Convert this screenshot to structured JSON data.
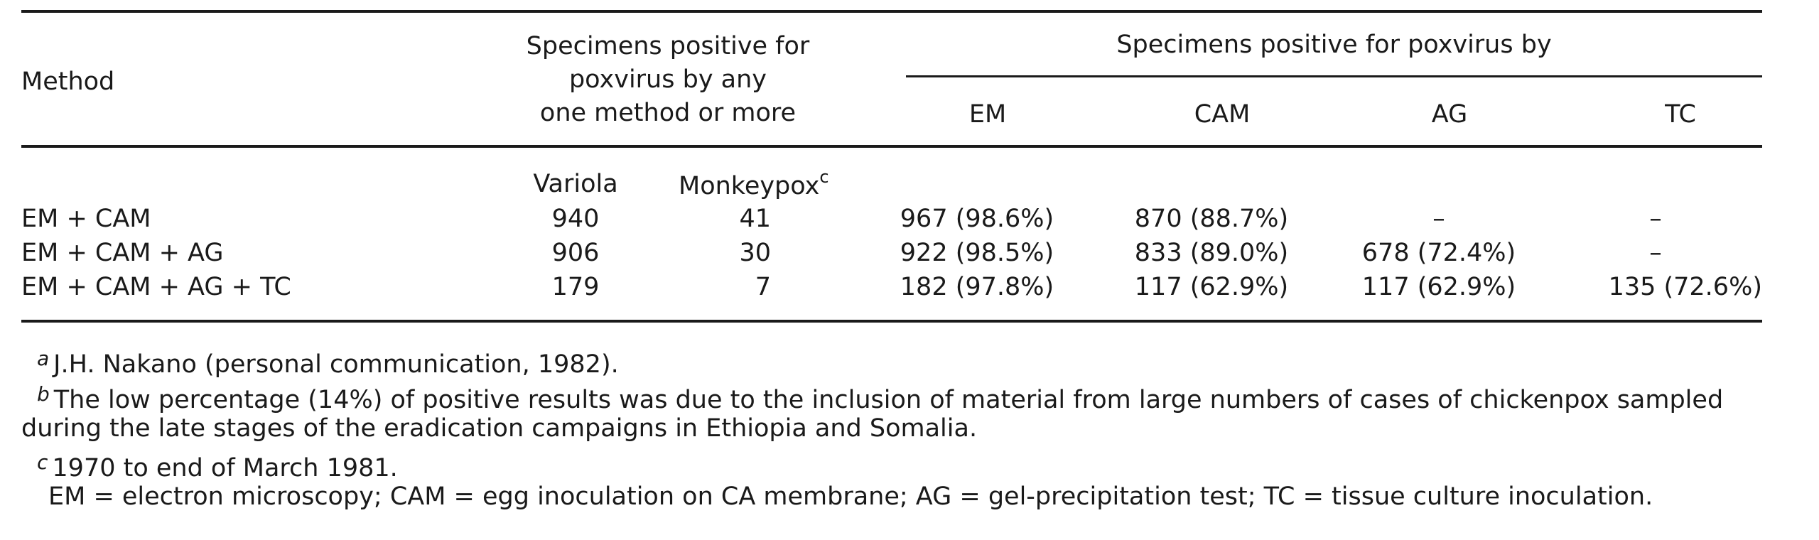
{
  "header": {
    "method": "Method",
    "any_line1": "Specimens positive for",
    "any_line2": "poxvirus by any",
    "any_line3": "one method or more",
    "positive_by": "Specimens positive for poxvirus by",
    "em": "EM",
    "cam": "CAM",
    "ag": "AG",
    "tc": "TC",
    "variola": "Variola",
    "monkeypox": "Monkeypox",
    "monkeypox_mark": "c"
  },
  "rows": [
    {
      "method": "EM + CAM",
      "variola": "940",
      "monkeypox": "41",
      "em": "967 (98.6%)",
      "cam": "870 (88.7%)",
      "ag": "–",
      "tc": "–"
    },
    {
      "method": "EM + CAM + AG",
      "variola": "906",
      "monkeypox": "30",
      "em": "922 (98.5%)",
      "cam": "833 (89.0%)",
      "ag": "678 (72.4%)",
      "tc": "–"
    },
    {
      "method": "EM + CAM + AG + TC",
      "variola": "179",
      "monkeypox": "7",
      "em": "182 (97.8%)",
      "cam": "117 (62.9%)",
      "ag": "117 (62.9%)",
      "tc": "135 (72.6%)"
    }
  ],
  "footnotes": {
    "a_mark": "a",
    "a_text": "J.H. Nakano (personal communication, 1982).",
    "b_mark": "b",
    "b_text_line1": "The low percentage (14%) of positive results was due to the inclusion of material from large numbers of cases of chickenpox sampled",
    "b_text_line2": "during the late stages of the eradication campaigns in Ethiopia and Somalia.",
    "c_mark": "c",
    "c_text": "1970 to end of March 1981.",
    "abbrev": "EM = electron microscopy; CAM = egg inoculation on CA membrane; AG = gel-precipitation test; TC = tissue culture inoculation."
  }
}
